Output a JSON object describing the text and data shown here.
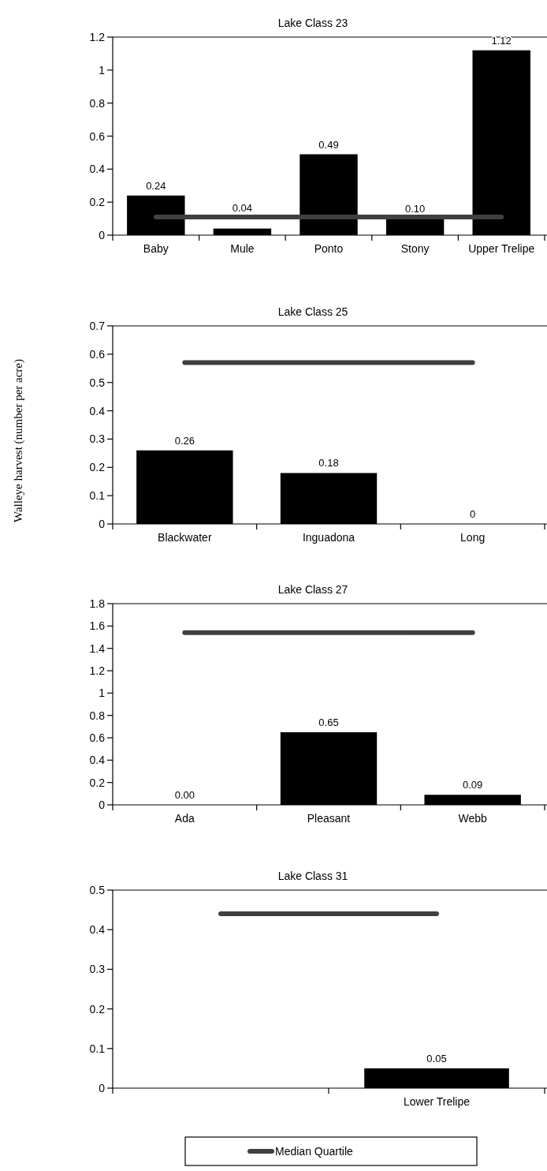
{
  "chart_data": [
    {
      "type": "bar",
      "title": "Lake Class 23",
      "categories": [
        "Baby",
        "Mule",
        "Ponto",
        "Stony",
        "Upper Trelipe"
      ],
      "series": [
        {
          "type": "bar",
          "color": "#000000",
          "values": [
            0.24,
            0.04,
            0.49,
            0.1,
            1.12
          ],
          "value_labels": [
            "0.24",
            "0.04",
            "0.49",
            "0.10",
            "1.12"
          ]
        },
        {
          "type": "line",
          "color": "#404040",
          "values": [
            0.11,
            0.11,
            0.11,
            0.11,
            0.11
          ]
        }
      ],
      "ylim": [
        0,
        1.2
      ],
      "yticks": [
        0,
        0.2,
        0.4,
        0.6,
        0.8,
        1,
        1.2
      ]
    },
    {
      "type": "bar",
      "title": "Lake Class 25",
      "ylabel": "Walleye harvest (number per acre)",
      "categories": [
        "Blackwater",
        "Inguadona",
        "Long"
      ],
      "series": [
        {
          "type": "bar",
          "color": "#000000",
          "values": [
            0.26,
            0.18,
            0
          ],
          "value_labels": [
            "0.26",
            "0.18",
            "0"
          ]
        },
        {
          "type": "line",
          "color": "#404040",
          "values": [
            0.57,
            0.57,
            0.57
          ]
        }
      ],
      "ylim": [
        0,
        0.7
      ],
      "yticks": [
        0,
        0.1,
        0.2,
        0.3,
        0.4,
        0.5,
        0.6,
        0.7
      ]
    },
    {
      "type": "bar",
      "title": "Lake Class 27",
      "categories": [
        "Ada",
        "Pleasant",
        "Webb"
      ],
      "series": [
        {
          "type": "bar",
          "color": "#000000",
          "values": [
            0,
            0.65,
            0.09
          ],
          "value_labels": [
            "0.00",
            "0.65",
            "0.09"
          ]
        },
        {
          "type": "line",
          "color": "#404040",
          "values": [
            1.54,
            1.54,
            1.54
          ]
        }
      ],
      "ylim": [
        0,
        1.8
      ],
      "yticks": [
        0,
        0.2,
        0.4,
        0.6,
        0.8,
        1,
        1.2,
        1.4,
        1.6,
        1.8
      ]
    },
    {
      "type": "bar",
      "title": "Lake Class 31",
      "categories": [
        null,
        "Lower Trelipe"
      ],
      "series": [
        {
          "type": "bar",
          "color": "#000000",
          "values": [
            null,
            0.05
          ],
          "value_labels": [
            null,
            "0.05"
          ]
        },
        {
          "type": "line",
          "color": "#404040",
          "name": "Median Quartile",
          "values": [
            0.44,
            0.44
          ]
        }
      ],
      "ylim": [
        0,
        0.5
      ],
      "yticks": [
        0,
        0.1,
        0.2,
        0.3,
        0.4,
        0.5
      ],
      "legend": "bottom"
    }
  ]
}
